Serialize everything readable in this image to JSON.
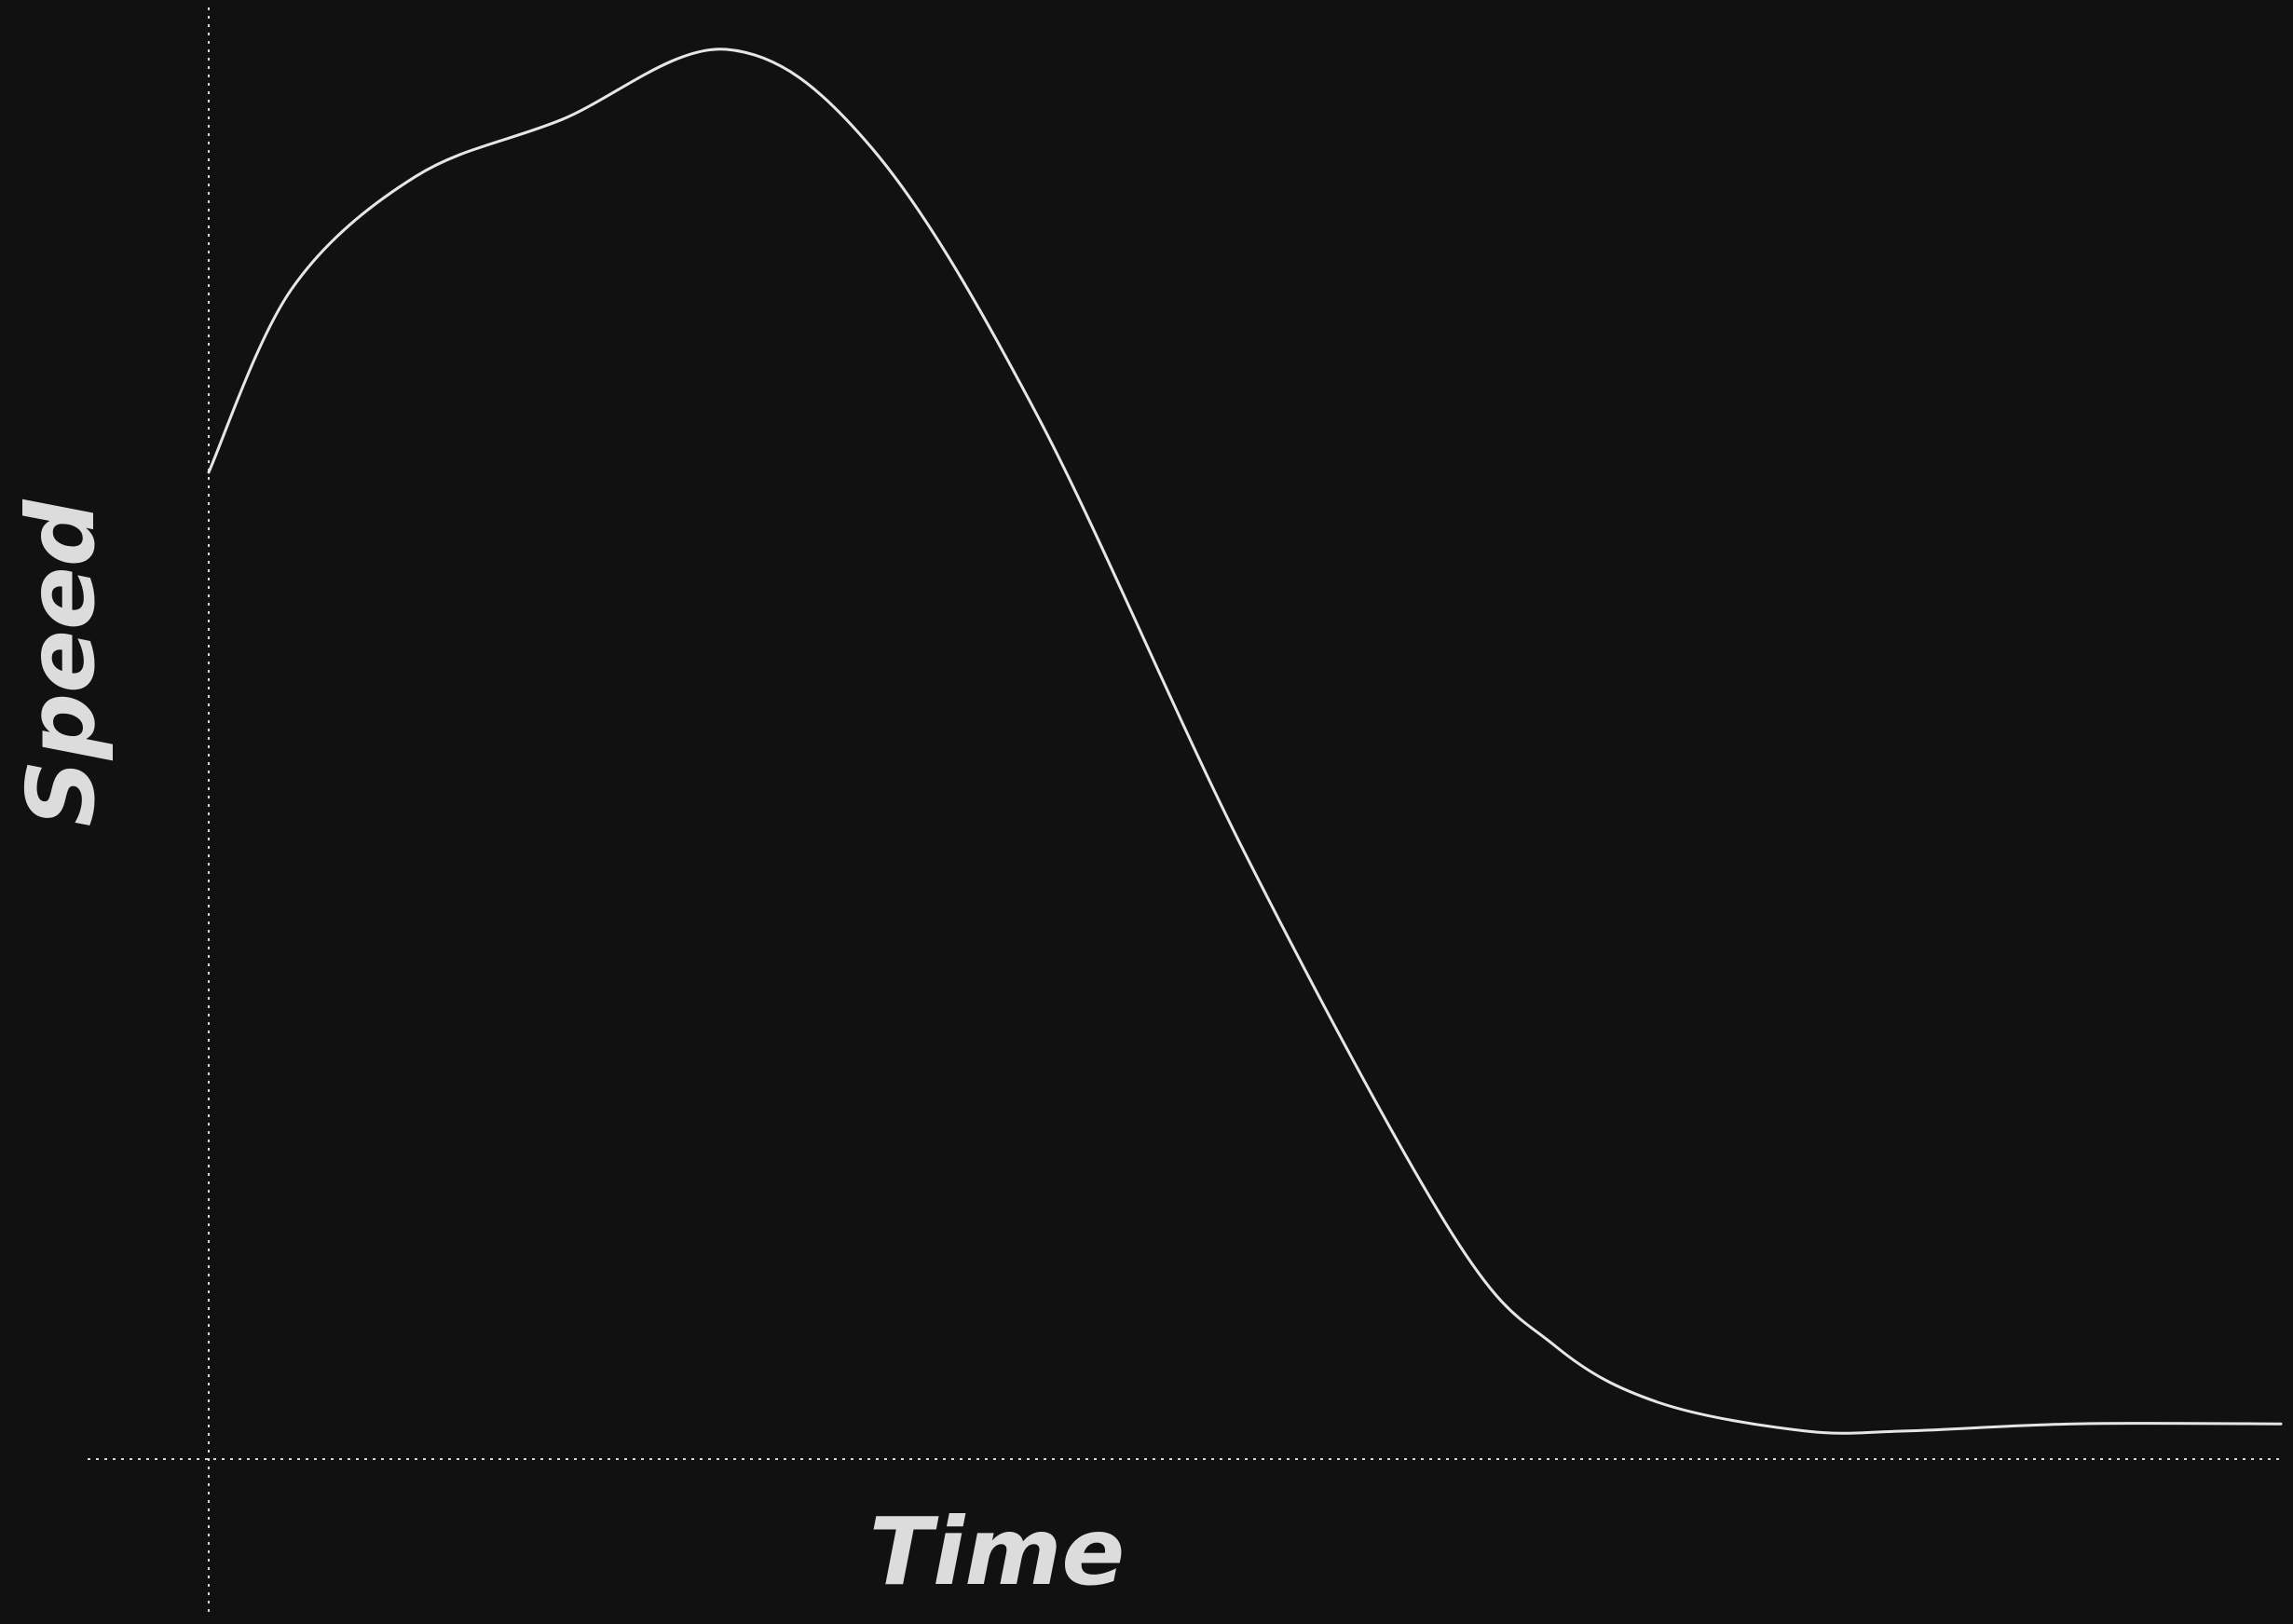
{
  "chart_data": {
    "type": "line",
    "title": "",
    "xlabel": "Time",
    "ylabel": "Speed",
    "grid": false,
    "axis_ticks": false,
    "xlim": [
      0,
      100
    ],
    "ylim": [
      0,
      100
    ],
    "series": [
      {
        "x": [
          0,
          4,
          10,
          17,
          25,
          32,
          40,
          50,
          60,
          65,
          70,
          77,
          82,
          90,
          100
        ],
        "values": [
          70,
          83,
          91,
          95,
          100,
          93,
          74,
          43,
          16,
          8,
          4,
          2,
          2,
          2.5,
          2.5
        ]
      }
    ],
    "colors": {
      "background": "#111111",
      "line": "#e6e6e6",
      "axes": "#d8d8d8",
      "text": "#dcdcdc"
    }
  }
}
